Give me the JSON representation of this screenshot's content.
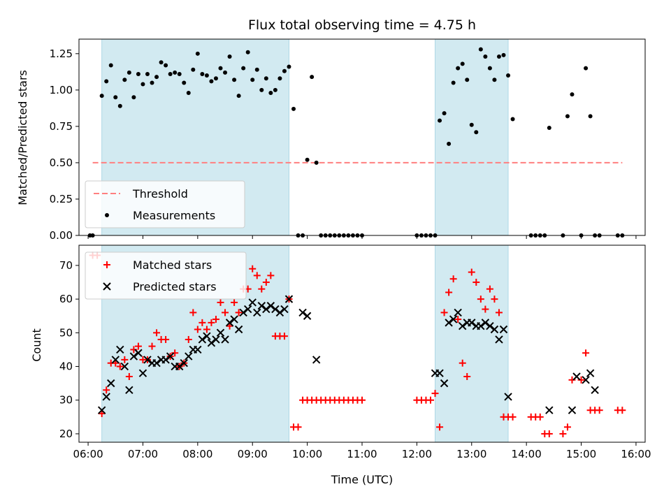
{
  "title": "Flux total observing time = 4.75 h",
  "colors": {
    "shade": "#add8e6",
    "threshold": "#ff7f7f",
    "matched": "#ff0000",
    "predicted": "#000000",
    "measurement": "#000000"
  },
  "chart_data": [
    {
      "type": "scatter",
      "panel": "top",
      "ylabel": "Matched/Predicted stars",
      "xlabel": "",
      "xlim": [
        "05:50",
        "16:10"
      ],
      "ylim": [
        0,
        1.35
      ],
      "x_ticks": [
        "06:00",
        "07:00",
        "08:00",
        "09:00",
        "10:00",
        "11:00",
        "12:00",
        "13:00",
        "14:00",
        "15:00",
        "16:00"
      ],
      "y_ticks": [
        "0.00",
        "0.25",
        "0.50",
        "0.75",
        "1.00",
        "1.25"
      ],
      "shaded_intervals": [
        [
          "06:15",
          "09:40"
        ],
        [
          "12:20",
          "13:40"
        ]
      ],
      "legend_position": "lower-left",
      "legend": [
        "Threshold",
        "Measurements"
      ],
      "threshold": {
        "name": "Threshold",
        "value": 0.5,
        "x_range": [
          "06:05",
          "15:45"
        ],
        "style": "dashed"
      },
      "series": [
        {
          "name": "Measurements",
          "marker": "dot",
          "x": [
            "06:02",
            "06:05",
            "06:15",
            "06:20",
            "06:25",
            "06:30",
            "06:35",
            "06:40",
            "06:45",
            "06:50",
            "06:55",
            "07:00",
            "07:05",
            "07:10",
            "07:15",
            "07:20",
            "07:25",
            "07:30",
            "07:35",
            "07:40",
            "07:45",
            "07:50",
            "07:55",
            "08:00",
            "08:05",
            "08:10",
            "08:15",
            "08:20",
            "08:25",
            "08:30",
            "08:35",
            "08:40",
            "08:45",
            "08:50",
            "08:55",
            "09:00",
            "09:05",
            "09:10",
            "09:15",
            "09:20",
            "09:25",
            "09:30",
            "09:35",
            "09:40",
            "09:45",
            "09:50",
            "09:55",
            "10:00",
            "10:05",
            "10:10",
            "10:15",
            "10:20",
            "10:25",
            "10:30",
            "10:35",
            "10:40",
            "10:45",
            "10:50",
            "10:55",
            "11:00",
            "12:00",
            "12:05",
            "12:10",
            "12:15",
            "12:20",
            "12:25",
            "12:30",
            "12:35",
            "12:40",
            "12:45",
            "12:50",
            "12:55",
            "13:00",
            "13:05",
            "13:10",
            "13:15",
            "13:20",
            "13:25",
            "13:30",
            "13:35",
            "13:40",
            "13:45",
            "14:05",
            "14:10",
            "14:15",
            "14:20",
            "14:25",
            "14:40",
            "14:45",
            "14:50",
            "15:00",
            "15:05",
            "15:10",
            "15:15",
            "15:20",
            "15:40",
            "15:45"
          ],
          "y": [
            0,
            0,
            0.96,
            1.06,
            1.17,
            0.95,
            0.89,
            1.07,
            1.12,
            0.95,
            1.11,
            1.04,
            1.11,
            1.05,
            1.09,
            1.19,
            1.17,
            1.11,
            1.12,
            1.11,
            1.05,
            0.98,
            1.14,
            1.25,
            1.11,
            1.1,
            1.06,
            1.08,
            1.15,
            1.12,
            1.23,
            1.07,
            0.96,
            1.15,
            1.26,
            1.07,
            1.14,
            1.0,
            1.08,
            0.98,
            1.0,
            1.08,
            1.13,
            1.16,
            0.87,
            0,
            0,
            0.52,
            1.09,
            0.5,
            0,
            0,
            0,
            0,
            0,
            0,
            0,
            0,
            0,
            0,
            0,
            0,
            0,
            0,
            0,
            0.79,
            0.84,
            0.63,
            1.05,
            1.15,
            1.18,
            1.07,
            0.76,
            0.71,
            1.28,
            1.23,
            1.15,
            1.07,
            1.23,
            1.24,
            1.1,
            0.8,
            0,
            0,
            0,
            0,
            0.74,
            0,
            0.82,
            0.97,
            0,
            1.15,
            0.82,
            0,
            0,
            0,
            0
          ]
        }
      ]
    },
    {
      "type": "scatter",
      "panel": "bottom",
      "ylabel": "Count",
      "xlabel": "Time (UTC)",
      "xlim": [
        "05:50",
        "16:10"
      ],
      "ylim": [
        17.5,
        76
      ],
      "x_ticks": [
        "06:00",
        "07:00",
        "08:00",
        "09:00",
        "10:00",
        "11:00",
        "12:00",
        "13:00",
        "14:00",
        "15:00",
        "16:00"
      ],
      "y_ticks": [
        "20",
        "30",
        "40",
        "50",
        "60",
        "70"
      ],
      "shaded_intervals": [
        [
          "06:15",
          "09:40"
        ],
        [
          "12:20",
          "13:40"
        ]
      ],
      "legend_position": "top-left",
      "legend": [
        "Matched stars",
        "Predicted stars"
      ],
      "series": [
        {
          "name": "Matched stars",
          "marker": "plus",
          "x": [
            "06:05",
            "06:10",
            "06:15",
            "06:20",
            "06:25",
            "06:30",
            "06:35",
            "06:40",
            "06:45",
            "06:50",
            "06:55",
            "07:00",
            "07:05",
            "07:10",
            "07:15",
            "07:20",
            "07:25",
            "07:30",
            "07:35",
            "07:40",
            "07:45",
            "07:50",
            "07:55",
            "08:00",
            "08:05",
            "08:10",
            "08:15",
            "08:20",
            "08:25",
            "08:30",
            "08:35",
            "08:40",
            "08:45",
            "08:50",
            "08:55",
            "09:00",
            "09:05",
            "09:10",
            "09:15",
            "09:20",
            "09:25",
            "09:30",
            "09:35",
            "09:40",
            "09:45",
            "09:50",
            "09:55",
            "10:00",
            "10:05",
            "10:10",
            "10:15",
            "10:20",
            "10:25",
            "10:30",
            "10:35",
            "10:40",
            "10:45",
            "10:50",
            "10:55",
            "11:00",
            "12:00",
            "12:05",
            "12:10",
            "12:15",
            "12:20",
            "12:25",
            "12:30",
            "12:35",
            "12:40",
            "12:45",
            "12:50",
            "12:55",
            "13:00",
            "13:05",
            "13:10",
            "13:15",
            "13:20",
            "13:25",
            "13:30",
            "13:35",
            "13:40",
            "13:45",
            "14:05",
            "14:10",
            "14:15",
            "14:20",
            "14:25",
            "14:40",
            "14:45",
            "14:50",
            "15:00",
            "15:05",
            "15:10",
            "15:15",
            "15:20",
            "15:40",
            "15:45"
          ],
          "y": [
            73,
            73,
            26,
            33,
            41,
            41,
            40,
            42,
            37,
            45,
            46,
            42,
            42,
            46,
            50,
            48,
            48,
            43,
            44,
            40,
            41,
            48,
            56,
            51,
            53,
            51,
            53,
            54,
            59,
            56,
            52,
            59,
            56,
            63,
            63,
            69,
            67,
            63,
            65,
            67,
            49,
            49,
            49,
            60,
            22,
            22,
            30,
            30,
            30,
            30,
            30,
            30,
            30,
            30,
            30,
            30,
            30,
            30,
            30,
            30,
            30,
            30,
            30,
            30,
            32,
            22,
            56,
            62,
            66,
            54,
            41,
            37,
            68,
            65,
            60,
            57,
            63,
            60,
            56,
            25,
            25,
            25,
            25,
            25,
            25,
            20,
            20,
            20,
            22,
            36,
            36,
            44,
            27,
            27,
            27,
            27,
            27
          ]
        },
        {
          "name": "Predicted stars",
          "marker": "x",
          "x": [
            "06:15",
            "06:20",
            "06:25",
            "06:30",
            "06:35",
            "06:40",
            "06:45",
            "06:50",
            "06:55",
            "07:00",
            "07:05",
            "07:10",
            "07:15",
            "07:20",
            "07:25",
            "07:30",
            "07:35",
            "07:40",
            "07:45",
            "07:50",
            "07:55",
            "08:00",
            "08:05",
            "08:10",
            "08:15",
            "08:20",
            "08:25",
            "08:30",
            "08:35",
            "08:40",
            "08:45",
            "08:50",
            "08:55",
            "09:00",
            "09:05",
            "09:10",
            "09:15",
            "09:20",
            "09:25",
            "09:30",
            "09:35",
            "09:40",
            "09:55",
            "10:00",
            "10:10",
            "12:20",
            "12:25",
            "12:30",
            "12:35",
            "12:40",
            "12:45",
            "12:50",
            "12:55",
            "13:00",
            "13:05",
            "13:10",
            "13:15",
            "13:20",
            "13:25",
            "13:30",
            "13:35",
            "13:40",
            "14:25",
            "14:50",
            "14:55",
            "15:05",
            "15:10",
            "15:15"
          ],
          "y": [
            27,
            31,
            35,
            42,
            45,
            40,
            33,
            43,
            44,
            38,
            42,
            41,
            41,
            42,
            42,
            43,
            40,
            40,
            41,
            43,
            45,
            45,
            48,
            49,
            47,
            48,
            50,
            48,
            53,
            54,
            51,
            56,
            57,
            59,
            56,
            58,
            57,
            58,
            57,
            56,
            57,
            60,
            56,
            55,
            42,
            38,
            38,
            35,
            53,
            54,
            56,
            52,
            53,
            53,
            52,
            52,
            53,
            52,
            51,
            48,
            51,
            31,
            27,
            27,
            37,
            36,
            38,
            33
          ]
        }
      ]
    }
  ]
}
